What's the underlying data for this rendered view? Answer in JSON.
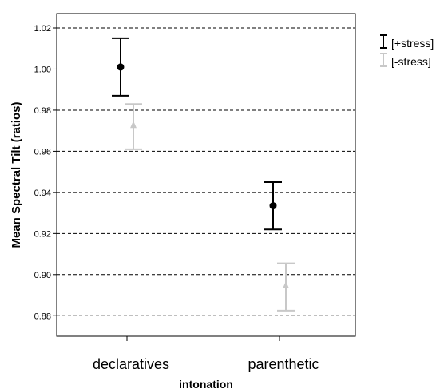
{
  "chart_data": {
    "type": "scatter",
    "xlabel": "intonation",
    "ylabel": "Mean Spectral Tilt (ratios)",
    "categories": [
      "declaratives",
      "parenthetic"
    ],
    "ylim": [
      0.87,
      1.027
    ],
    "yticks": [
      "0.88",
      "0.90",
      "0.92",
      "0.94",
      "0.96",
      "0.98",
      "1.00",
      "1.02"
    ],
    "grid": "horizontal-dashed",
    "legend_position": "top-right",
    "series": [
      {
        "name": "[+stress]",
        "color": "#000000",
        "marker": "circle",
        "points": [
          {
            "category": "declaratives",
            "mean": 1.001,
            "lower": 0.987,
            "upper": 1.015
          },
          {
            "category": "parenthetic",
            "mean": 0.9335,
            "lower": 0.922,
            "upper": 0.945
          }
        ]
      },
      {
        "name": "[-stress]",
        "color": "#c8c8c8",
        "marker": "triangle",
        "points": [
          {
            "category": "declaratives",
            "mean": 0.9725,
            "lower": 0.961,
            "upper": 0.983
          },
          {
            "category": "parenthetic",
            "mean": 0.8945,
            "lower": 0.8825,
            "upper": 0.9055
          }
        ]
      }
    ]
  }
}
